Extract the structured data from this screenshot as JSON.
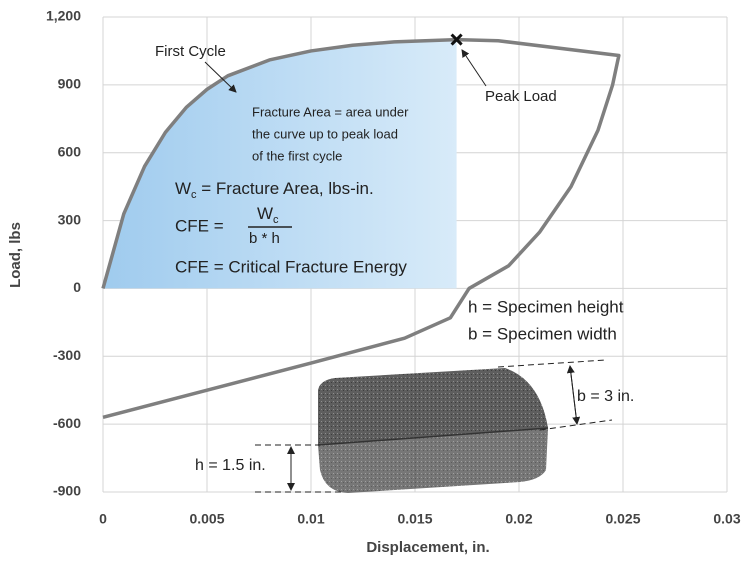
{
  "chart_data": {
    "type": "line",
    "x_label": "Displacement, in.",
    "y_label": "Load, lbs",
    "x": [
      0,
      0.001,
      0.002,
      0.003,
      0.004,
      0.005,
      0.006,
      0.008,
      0.01,
      0.012,
      0.014,
      0.017,
      0.019,
      0.0248,
      0.0245,
      0.0238,
      0.0225,
      0.021,
      0.0195,
      0.0176,
      0.0167,
      0.0145,
      0.01,
      0.005,
      0
    ],
    "series": [
      {
        "color": "#7f7f7f",
        "values": [
          0,
          330,
          540,
          690,
          800,
          880,
          940,
          1010,
          1050,
          1075,
          1090,
          1100,
          1095,
          1030,
          900,
          700,
          450,
          250,
          100,
          0,
          -130,
          -220,
          -330,
          -450,
          -570
        ]
      }
    ],
    "xlim": [
      0,
      0.03
    ],
    "xticks": [
      0,
      0.005,
      0.01,
      0.015,
      0.02,
      0.025,
      0.03
    ],
    "ylim": [
      -900,
      1200
    ],
    "yticks": [
      -900,
      -600,
      -300,
      0,
      300,
      600,
      900,
      {
        "value": 1200,
        "label": "1,200"
      }
    ],
    "grid": true,
    "peak": {
      "x": 0.017,
      "y": 1100
    },
    "annotations": {
      "first_cycle": "First Cycle",
      "peak_load": "Peak Load",
      "fracture_area": [
        "Fracture Area = area under",
        "the curve up to peak load",
        "of the first cycle"
      ],
      "wc_symbol": "W",
      "wc_sub": "c",
      "wc_def": " = Fracture Area, lbs-in.",
      "cfe_lhs": "CFE =",
      "cfe_num": "W",
      "cfe_num_sub": "c",
      "cfe_den": "b * h",
      "cfe_def": "CFE = Critical Fracture Energy",
      "h_def": "h = Specimen height",
      "b_def": "b = Specimen width",
      "b_dim": "b = 3 in.",
      "h_dim": "h = 1.5 in."
    }
  }
}
